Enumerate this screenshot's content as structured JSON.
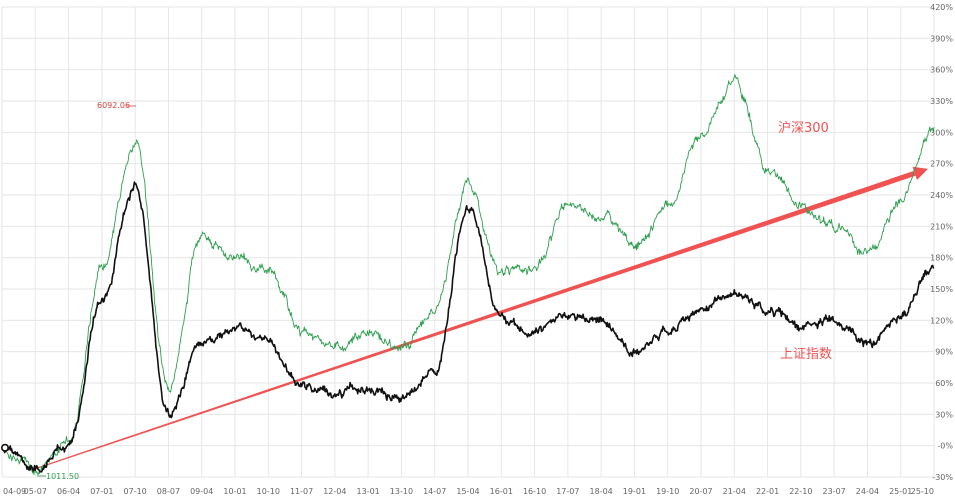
{
  "chart_data": {
    "type": "line",
    "x_ticks": [
      "04-09",
      "05-07",
      "06-04",
      "07-01",
      "07-10",
      "08-07",
      "09-04",
      "10-01",
      "10-10",
      "11-07",
      "12-04",
      "13-01",
      "13-10",
      "14-07",
      "15-04",
      "16-01",
      "16-10",
      "17-07",
      "18-04",
      "19-01",
      "19-10",
      "20-07",
      "21-04",
      "22-01",
      "22-10",
      "23-07",
      "24-04",
      "25-01",
      "25-10"
    ],
    "y_ticks": [
      "-30%",
      "-0%",
      "30%",
      "60%",
      "90%",
      "120%",
      "150%",
      "180%",
      "210%",
      "240%",
      "270%",
      "300%",
      "330%",
      "360%",
      "390%",
      "420%"
    ],
    "ylim": [
      -30,
      420
    ],
    "grid": true,
    "series": [
      {
        "name": "沪深300",
        "color": "#2e9e4f",
        "points": [
          [
            "04-09",
            -5
          ],
          [
            "05-07",
            -22
          ],
          [
            "06-04",
            3
          ],
          [
            "07-01",
            170
          ],
          [
            "07-10",
            290
          ],
          [
            "08-07",
            55
          ],
          [
            "09-04",
            200
          ],
          [
            "10-01",
            180
          ],
          [
            "10-10",
            170
          ],
          [
            "11-07",
            110
          ],
          [
            "12-04",
            95
          ],
          [
            "13-01",
            110
          ],
          [
            "13-10",
            95
          ],
          [
            "14-07",
            130
          ],
          [
            "15-04",
            250
          ],
          [
            "16-01",
            165
          ],
          [
            "16-10",
            170
          ],
          [
            "17-07",
            230
          ],
          [
            "18-04",
            220
          ],
          [
            "19-01",
            190
          ],
          [
            "19-10",
            230
          ],
          [
            "20-07",
            300
          ],
          [
            "21-04",
            350
          ],
          [
            "22-01",
            270
          ],
          [
            "22-10",
            230
          ],
          [
            "23-07",
            210
          ],
          [
            "24-04",
            185
          ],
          [
            "25-01",
            235
          ],
          [
            "25-10",
            305
          ]
        ]
      },
      {
        "name": "上证指数",
        "color": "#111111",
        "points": [
          [
            "04-09",
            -5
          ],
          [
            "05-07",
            -22
          ],
          [
            "06-04",
            3
          ],
          [
            "07-01",
            140
          ],
          [
            "07-10",
            250
          ],
          [
            "08-07",
            30
          ],
          [
            "09-04",
            100
          ],
          [
            "10-01",
            110
          ],
          [
            "10-10",
            100
          ],
          [
            "11-07",
            60
          ],
          [
            "12-04",
            50
          ],
          [
            "13-01",
            55
          ],
          [
            "13-10",
            45
          ],
          [
            "14-07",
            70
          ],
          [
            "15-04",
            230
          ],
          [
            "16-01",
            120
          ],
          [
            "16-10",
            110
          ],
          [
            "17-07",
            125
          ],
          [
            "18-04",
            120
          ],
          [
            "19-01",
            90
          ],
          [
            "19-10",
            110
          ],
          [
            "20-07",
            130
          ],
          [
            "21-04",
            145
          ],
          [
            "22-01",
            130
          ],
          [
            "22-10",
            115
          ],
          [
            "23-07",
            120
          ],
          [
            "24-04",
            95
          ],
          [
            "25-01",
            125
          ],
          [
            "25-10",
            170
          ]
        ]
      }
    ],
    "annotations": {
      "high_label": "6092.06",
      "low_label": "1011.50"
    },
    "trend_arrows": [
      {
        "from": [
          "05-07",
          -22
        ],
        "to": [
          "25-10",
          265
        ],
        "color": "#f05252"
      }
    ],
    "series_labels": {
      "hs300": "沪深300",
      "sh": "上证指数"
    },
    "colors": {
      "green": "#2e9e4f",
      "black": "#111111",
      "red": "#f05252",
      "grid": "#e6e6e6",
      "tick": "#666666",
      "high": "#d94040",
      "low": "#2e9e4f"
    }
  }
}
